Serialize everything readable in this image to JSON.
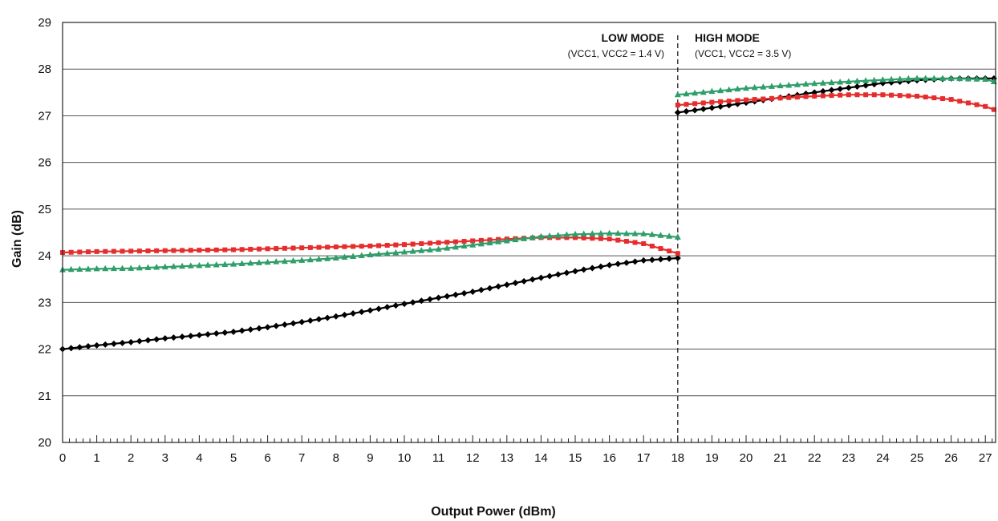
{
  "chart_data": {
    "type": "line",
    "title": "",
    "xlabel": "Output Power (dBm)",
    "ylabel": "Gain (dB)",
    "xlim": [
      0,
      27.3
    ],
    "ylim": [
      20,
      29
    ],
    "xticks": [
      "0",
      "1",
      "2",
      "3",
      "4",
      "5",
      "6",
      "7",
      "8",
      "9",
      "10",
      "11",
      "12",
      "13",
      "14",
      "15",
      "16",
      "17",
      "18",
      "19",
      "20",
      "21",
      "22",
      "23",
      "24",
      "25",
      "26",
      "27"
    ],
    "yticks": [
      "20",
      "21",
      "22",
      "23",
      "24",
      "25",
      "26",
      "27",
      "28",
      "29"
    ],
    "grid": true,
    "mode_boundary_x": 18,
    "annotations": [
      {
        "title": "LOW MODE",
        "condition": "(VCC1, VCC2 = 1.4 V)"
      },
      {
        "title": "HIGH MODE",
        "condition": "(VCC1, VCC2 = 3.5 V)"
      }
    ],
    "series": [
      {
        "color": "#000000",
        "marker": "diamond",
        "segments": [
          {
            "x": [
              0,
              1,
              2,
              3,
              4,
              5,
              6,
              7,
              8,
              9,
              10,
              11,
              12,
              13,
              14,
              15,
              16,
              17,
              18
            ],
            "y": [
              22.0,
              22.08,
              22.15,
              22.23,
              22.3,
              22.37,
              22.47,
              22.58,
              22.7,
              22.83,
              22.97,
              23.1,
              23.23,
              23.38,
              23.53,
              23.67,
              23.8,
              23.9,
              23.95
            ]
          },
          {
            "x": [
              18,
              19,
              20,
              21,
              22,
              23,
              24,
              25,
              26,
              27,
              27.3
            ],
            "y": [
              27.07,
              27.17,
              27.28,
              27.39,
              27.5,
              27.6,
              27.7,
              27.76,
              27.8,
              27.8,
              27.8
            ]
          }
        ]
      },
      {
        "color": "#e62d2d",
        "marker": "square",
        "segments": [
          {
            "x": [
              0,
              1,
              2,
              3,
              4,
              5,
              6,
              7,
              8,
              9,
              10,
              11,
              12,
              13,
              14,
              15,
              16,
              17,
              18
            ],
            "y": [
              24.07,
              24.09,
              24.1,
              24.11,
              24.12,
              24.13,
              24.15,
              24.17,
              24.19,
              24.21,
              24.24,
              24.28,
              24.32,
              24.36,
              24.39,
              24.39,
              24.36,
              24.26,
              24.05
            ]
          },
          {
            "x": [
              18,
              19,
              20,
              21,
              22,
              23,
              24,
              25,
              26,
              27,
              27.3
            ],
            "y": [
              27.23,
              27.29,
              27.34,
              27.38,
              27.42,
              27.45,
              27.45,
              27.42,
              27.35,
              27.2,
              27.12
            ]
          }
        ]
      },
      {
        "color": "#2e9e6a",
        "marker": "triangle",
        "segments": [
          {
            "x": [
              0,
              1,
              2,
              3,
              4,
              5,
              6,
              7,
              8,
              9,
              10,
              11,
              12,
              13,
              14,
              15,
              16,
              17,
              18
            ],
            "y": [
              23.7,
              23.72,
              23.73,
              23.76,
              23.79,
              23.82,
              23.86,
              23.9,
              23.95,
              24.02,
              24.08,
              24.14,
              24.23,
              24.32,
              24.41,
              24.46,
              24.48,
              24.47,
              24.4
            ]
          },
          {
            "x": [
              18,
              19,
              20,
              21,
              22,
              23,
              24,
              25,
              26,
              27,
              27.3
            ],
            "y": [
              27.45,
              27.52,
              27.59,
              27.64,
              27.69,
              27.73,
              27.77,
              27.8,
              27.8,
              27.78,
              27.72
            ]
          }
        ]
      }
    ]
  }
}
